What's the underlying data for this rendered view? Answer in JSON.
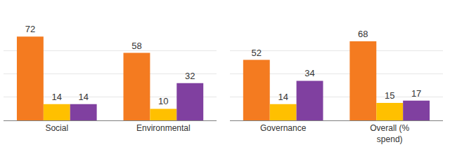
{
  "chart_data": [
    {
      "type": "bar",
      "categories": [
        "Social",
        "Environmental"
      ],
      "series": [
        {
          "color": "#F47B20",
          "values": [
            72,
            58
          ]
        },
        {
          "color": "#FFC000",
          "values": [
            14,
            10
          ]
        },
        {
          "color": "#8040A0",
          "values": [
            14,
            32
          ]
        }
      ],
      "ylim": [
        0,
        80
      ],
      "yticks": [
        0,
        20,
        40,
        60,
        80
      ],
      "grid": true,
      "data_labels": true,
      "tick_labels": "x"
    },
    {
      "type": "bar",
      "categories": [
        "Governance",
        "Overall (% spend)"
      ],
      "series": [
        {
          "color": "#F47B20",
          "values": [
            52,
            68
          ]
        },
        {
          "color": "#FFC000",
          "values": [
            14,
            15
          ]
        },
        {
          "color": "#8040A0",
          "values": [
            34,
            17
          ]
        }
      ],
      "ylim": [
        0,
        80
      ],
      "yticks": [
        0,
        20,
        40,
        60,
        80
      ],
      "grid": true,
      "data_labels": true,
      "tick_labels": "x"
    }
  ]
}
